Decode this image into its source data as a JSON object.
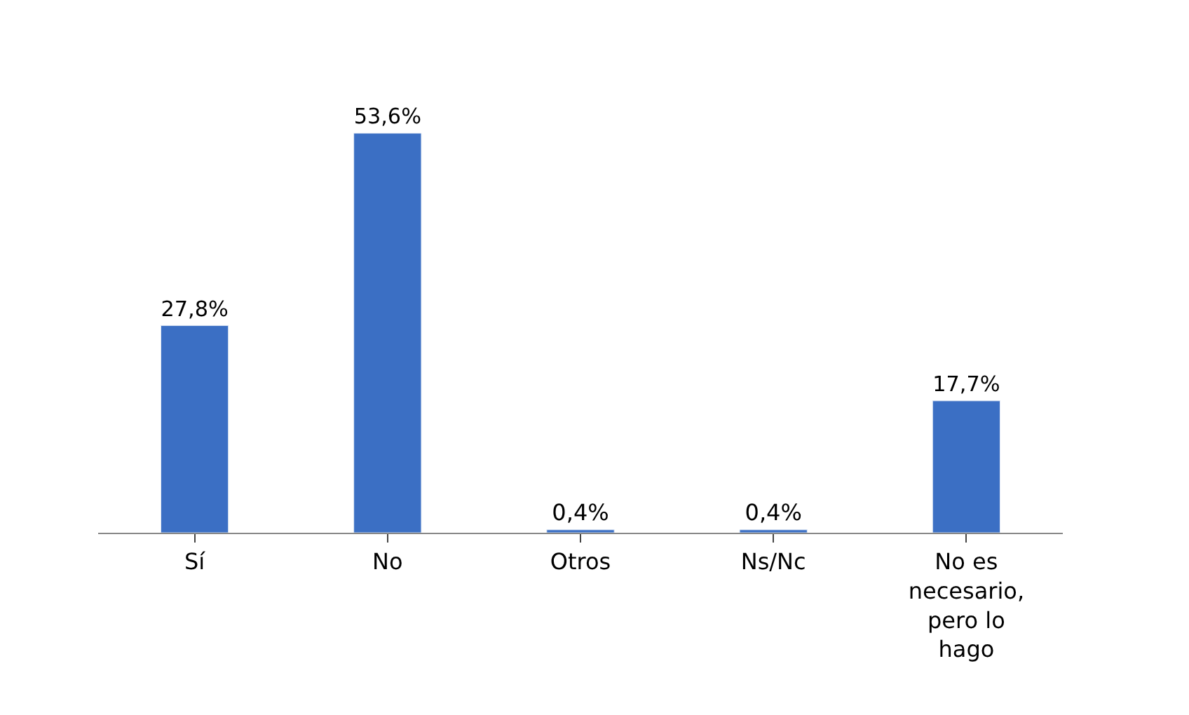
{
  "chart_data": {
    "type": "bar",
    "categories": [
      "Sí",
      "No",
      "Otros",
      "Ns/Nc",
      "No es necesario, pero lo hago"
    ],
    "values": [
      27.8,
      53.6,
      0.4,
      0.4,
      17.7
    ],
    "value_labels": [
      "27,8%",
      "53,6%",
      "0,4%",
      "0,4%",
      "17,7%"
    ],
    "color": "#3b6fc4",
    "legend": false
  }
}
